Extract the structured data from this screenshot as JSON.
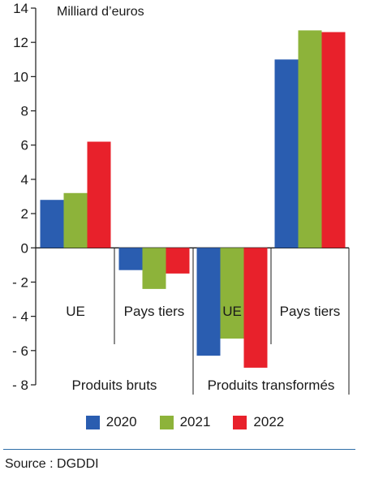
{
  "chart_data": {
    "type": "bar",
    "unit_label": "Milliard d’euros",
    "ylim": [
      -8,
      14
    ],
    "yticks": [
      14,
      12,
      10,
      8,
      6,
      4,
      2,
      0,
      -2,
      -4,
      -6,
      -8
    ],
    "ytick_labels": [
      "14",
      "12",
      "10",
      "8",
      "6",
      "4",
      "2",
      "0",
      "- 2",
      "- 4",
      "- 6",
      "- 8"
    ],
    "categories": [
      "UE",
      "Pays tiers",
      "UE",
      "Pays tiers"
    ],
    "groups": [
      "Produits bruts",
      "Produits transformés"
    ],
    "series": [
      {
        "name": "2020",
        "color": "#2a5db0",
        "values": [
          2.8,
          -1.3,
          -6.3,
          11.0
        ]
      },
      {
        "name": "2021",
        "color": "#8db33a",
        "values": [
          3.2,
          -2.4,
          -5.3,
          12.7
        ]
      },
      {
        "name": "2022",
        "color": "#e8212b",
        "values": [
          6.2,
          -1.5,
          -7.0,
          12.6
        ]
      }
    ],
    "legend_position": "bottom"
  },
  "source": "Source : DGDDI"
}
